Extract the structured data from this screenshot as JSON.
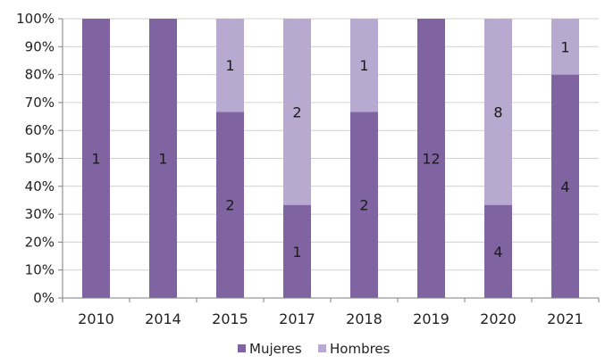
{
  "chart_data": {
    "type": "bar",
    "stacked": "percent",
    "categories": [
      "2010",
      "2014",
      "2015",
      "2017",
      "2018",
      "2019",
      "2020",
      "2021"
    ],
    "series": [
      {
        "name": "Mujeres",
        "values": [
          1,
          1,
          2,
          1,
          2,
          12,
          4,
          4
        ],
        "labels": [
          "1",
          "1",
          "2",
          "1",
          "2",
          "12",
          "4",
          "4"
        ]
      },
      {
        "name": "Hombres",
        "values": [
          0,
          0,
          1,
          2,
          1,
          0,
          8,
          1
        ],
        "labels": [
          "",
          "",
          "1",
          "2",
          "1",
          "",
          "8",
          "1"
        ]
      }
    ],
    "yticks": [
      "0%",
      "10%",
      "20%",
      "30%",
      "40%",
      "50%",
      "60%",
      "70%",
      "80%",
      "90%",
      "100%"
    ],
    "ylim": [
      0,
      100
    ],
    "grid": true,
    "legend_position": "bottom",
    "colors": {
      "Mujeres": "#8064a2",
      "Hombres": "#b7a9cf",
      "grid": "#d0d0d0",
      "axis": "#7f7f7f"
    }
  }
}
